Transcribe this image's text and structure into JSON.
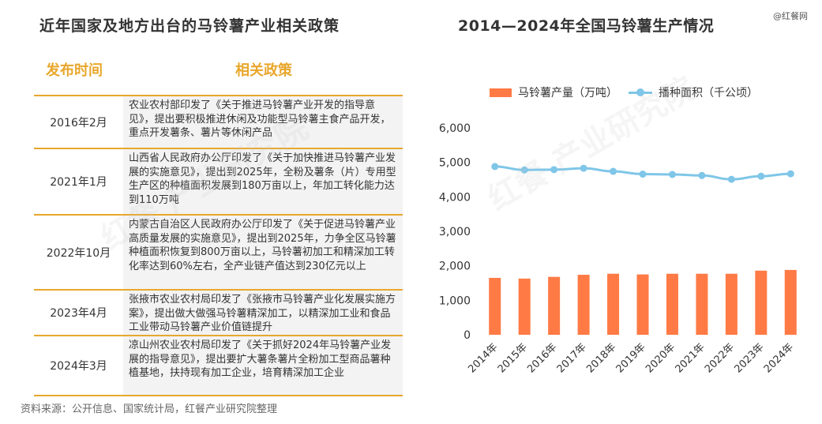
{
  "left": {
    "title": "近年国家及地方出台的马铃薯产业相关政策",
    "col_time": "发布时间",
    "col_policy": "相关政策",
    "rows": [
      {
        "date": "2016年2月",
        "text": "农业农村部印发了《关于推进马铃薯产业开发的指导意见》，提出要积极推进休闲及功能型马铃薯主食产品开发，重点开发薯条、薯片等休闲产品"
      },
      {
        "date": "2021年1月",
        "text": "山西省人民政府办公厅印发了《关于加快推进马铃薯产业发展的实施意见》，提出到2025年，全粉及薯条（片）专用型生产区的种植面积发展到180万亩以上，年加工转化能力达到110万吨"
      },
      {
        "date": "2022年10月",
        "text": "内蒙古自治区人民政府办公厅印发了《关于促进马铃薯产业高质量发展的实施意见》，提出到2025年，力争全区马铃薯种植面积恢复到800万亩以上，马铃薯初加工和精深加工转化率达到60%左右，全产业链产值达到230亿元以上"
      },
      {
        "date": "2023年4月",
        "text": "张掖市农业农村局印发了《张掖市马铃薯产业化发展实施方案》，提出做大做强马铃薯精深加工，以精深加工业和食品工业带动马铃薯产业价值链提升"
      },
      {
        "date": "2024年3月",
        "text": "凉山州农业农村局印发了《关于抓好2024年马铃薯产业发展的指导意见》，提出要扩大薯条薯片全粉加工型商品薯种植基地，扶持现有加工企业，培育精深加工企业"
      }
    ],
    "source": "资料来源：公开信息、国家统计局，红餐产业研究院整理"
  },
  "right": {
    "title": "2014—2024年全国马铃薯生产情况",
    "brand": "@红餐网"
  },
  "watermark": {
    "text1": "红餐 产业研究院",
    "text2": "红餐 产业研究院"
  },
  "colors": {
    "accent": "#E8A72C",
    "bar": "#FF7A45",
    "line": "#7FC6E8"
  },
  "chart_data": {
    "type": "bar",
    "categories": [
      "2014年",
      "2015年",
      "2016年",
      "2017年",
      "2018年",
      "2019年",
      "2020年",
      "2021年",
      "2022年",
      "2023年",
      "2024年"
    ],
    "series": [
      {
        "name": "马铃薯产量（万吨）",
        "type": "bar",
        "values": [
          1650,
          1630,
          1680,
          1740,
          1770,
          1750,
          1770,
          1770,
          1770,
          1860,
          1880
        ]
      },
      {
        "name": "播种面积（千公顷）",
        "type": "line",
        "values": [
          4880,
          4780,
          4790,
          4830,
          4740,
          4660,
          4650,
          4620,
          4510,
          4600,
          4670
        ]
      }
    ],
    "yticks": [
      "6,000",
      "5,000",
      "4,000",
      "3,000",
      "2,000",
      "1,000",
      "0"
    ],
    "ylim": [
      0,
      6000
    ],
    "legend": "top",
    "grid": false
  }
}
